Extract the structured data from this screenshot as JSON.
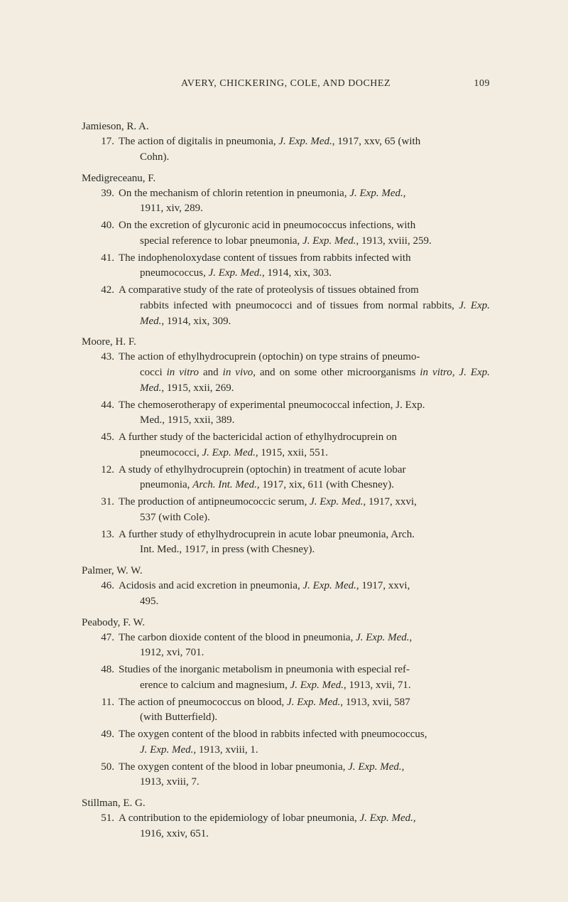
{
  "header": {
    "title": "AVERY, CHICKERING, COLE, AND DOCHEZ",
    "page": "109"
  },
  "authors": [
    {
      "name": "Jamieson, R. A.",
      "entries": [
        {
          "num": "17.",
          "first": "The action of digitalis in pneumonia, J. Exp. Med., 1917, xxv, 65 (with",
          "cont": "Cohn)."
        }
      ]
    },
    {
      "name": "Medigreceanu, F.",
      "entries": [
        {
          "num": "39.",
          "first": "On the mechanism of chlorin retention in pneumonia, J. Exp. Med.,",
          "cont": "1911, xiv, 289."
        },
        {
          "num": "40.",
          "first": "On the excretion of glycuronic acid in pneumococcus infections, with",
          "cont": "special reference to lobar pneumonia, J. Exp. Med., 1913, xviii, 259."
        },
        {
          "num": "41.",
          "first": "The indophenoloxydase content of tissues from rabbits infected with",
          "cont": "pneumococcus, J. Exp. Med., 1914, xix, 303."
        },
        {
          "num": "42.",
          "first": "A comparative study of the rate of proteolysis of tissues obtained from",
          "cont": "rabbits infected with pneumococci and of tissues from normal rabbits, J. Exp. Med., 1914, xix, 309."
        }
      ]
    },
    {
      "name": "Moore, H. F.",
      "entries": [
        {
          "num": "43.",
          "first": "The action of ethylhydrocuprein (optochin) on type strains of pneumo-",
          "cont": "cocci in vitro and in vivo, and on some other microorganisms in vitro, J. Exp. Med., 1915, xxii, 269."
        },
        {
          "num": "44.",
          "first": "The chemoserotherapy of experimental pneumococcal infection, J. Exp.",
          "cont": "Med., 1915, xxii, 389."
        },
        {
          "num": "45.",
          "first": "A further study of the bactericidal action of ethylhydrocuprein on",
          "cont": "pneumococci, J. Exp. Med., 1915, xxii, 551."
        },
        {
          "num": "12.",
          "first": "A study of ethylhydrocuprein (optochin) in treatment of acute lobar",
          "cont": "pneumonia, Arch. Int. Med., 1917, xix, 611 (with Chesney)."
        },
        {
          "num": "31.",
          "first": "The production of antipneumococcic serum, J. Exp. Med., 1917, xxvi,",
          "cont": "537 (with Cole)."
        },
        {
          "num": "13.",
          "first": "A further study of ethylhydrocuprein in acute lobar pneumonia, Arch.",
          "cont": "Int. Med., 1917, in press (with Chesney)."
        }
      ]
    },
    {
      "name": "Palmer, W. W.",
      "entries": [
        {
          "num": "46.",
          "first": "Acidosis and acid excretion in pneumonia, J. Exp. Med., 1917, xxvi,",
          "cont": "495."
        }
      ]
    },
    {
      "name": "Peabody, F. W.",
      "entries": [
        {
          "num": "47.",
          "first": "The carbon dioxide content of the blood in pneumonia, J. Exp. Med.,",
          "cont": "1912, xvi, 701."
        },
        {
          "num": "48.",
          "first": "Studies of the inorganic metabolism in pneumonia with especial ref-",
          "cont": "erence to calcium and magnesium, J. Exp. Med., 1913, xvii, 71."
        },
        {
          "num": "11.",
          "first": "The action of pneumococcus on blood, J. Exp. Med., 1913, xvii, 587",
          "cont": "(with Butterfield)."
        },
        {
          "num": "49.",
          "first": "The oxygen content of the blood in rabbits infected with pneumococcus,",
          "cont": "J. Exp. Med., 1913, xviii, 1."
        },
        {
          "num": "50.",
          "first": "The oxygen content of the blood in lobar pneumonia, J. Exp. Med.,",
          "cont": "1913, xviii, 7."
        }
      ]
    },
    {
      "name": "Stillman, E. G.",
      "entries": [
        {
          "num": "51.",
          "first": "A contribution to the epidemiology of lobar pneumonia, J. Exp. Med.,",
          "cont": "1916, xxiv, 651."
        }
      ]
    }
  ]
}
